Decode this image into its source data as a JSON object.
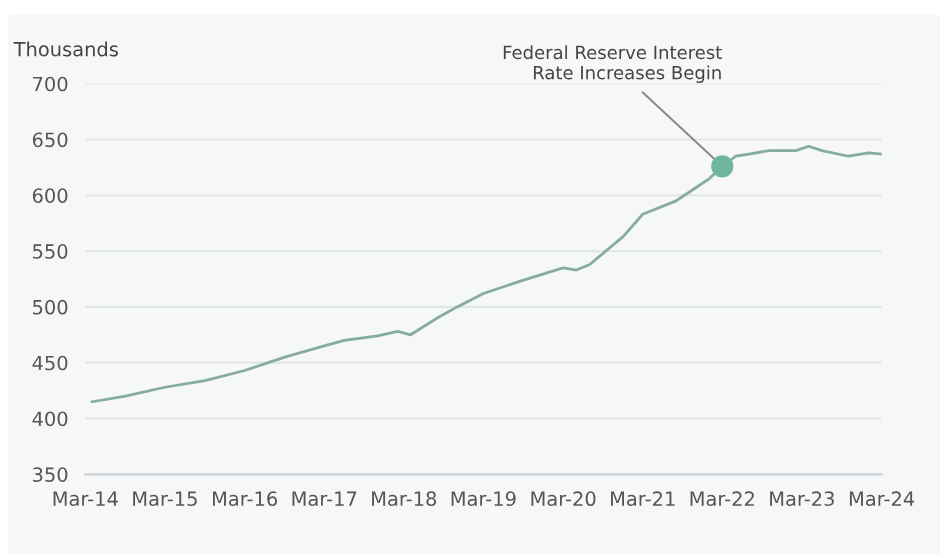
{
  "chart_data": {
    "type": "line",
    "ylabel": "Thousands",
    "x": [
      "2014-04",
      "2014-09",
      "2015-03",
      "2015-09",
      "2016-03",
      "2016-09",
      "2017-03",
      "2017-06",
      "2017-11",
      "2018-02",
      "2018-04",
      "2018-08",
      "2018-11",
      "2019-03",
      "2019-09",
      "2020-03",
      "2020-05",
      "2020-07",
      "2020-12",
      "2021-03",
      "2021-08",
      "2021-11",
      "2022-01",
      "2022-03",
      "2022-05",
      "2022-07",
      "2022-10",
      "2023-02",
      "2023-04",
      "2023-06",
      "2023-10",
      "2024-01",
      "2024-03"
    ],
    "series": [
      {
        "color": "#86ab9f",
        "values": [
          415,
          420,
          428,
          434,
          443,
          455,
          465,
          470,
          474,
          478,
          475,
          490,
          500,
          512,
          524,
          535,
          533,
          538,
          563,
          583,
          595,
          607,
          615,
          626,
          635,
          637,
          640,
          640,
          644,
          640,
          635,
          638,
          637
        ]
      }
    ],
    "annotations": [
      {
        "text": "Federal Reserve Interest\nRate Increases Begin",
        "x": "2022-03",
        "y": 626
      }
    ],
    "xlim": [
      "2014-03",
      "2024-03"
    ],
    "xticks": [
      {
        "value": "2014-03",
        "label": "Mar-14"
      },
      {
        "value": "2015-03",
        "label": "Mar-15"
      },
      {
        "value": "2016-03",
        "label": "Mar-16"
      },
      {
        "value": "2017-03",
        "label": "Mar-17"
      },
      {
        "value": "2018-03",
        "label": "Mar-18"
      },
      {
        "value": "2019-03",
        "label": "Mar-19"
      },
      {
        "value": "2020-03",
        "label": "Mar-20"
      },
      {
        "value": "2021-03",
        "label": "Mar-21"
      },
      {
        "value": "2022-03",
        "label": "Mar-22"
      },
      {
        "value": "2023-03",
        "label": "Mar-23"
      },
      {
        "value": "2024-03",
        "label": "Mar-24"
      }
    ],
    "ylim": [
      350,
      700
    ],
    "yticks": [
      350,
      400,
      450,
      500,
      550,
      600,
      650,
      700
    ],
    "grid": "y",
    "marker": "none",
    "line_style": "solid",
    "legend": false
  }
}
